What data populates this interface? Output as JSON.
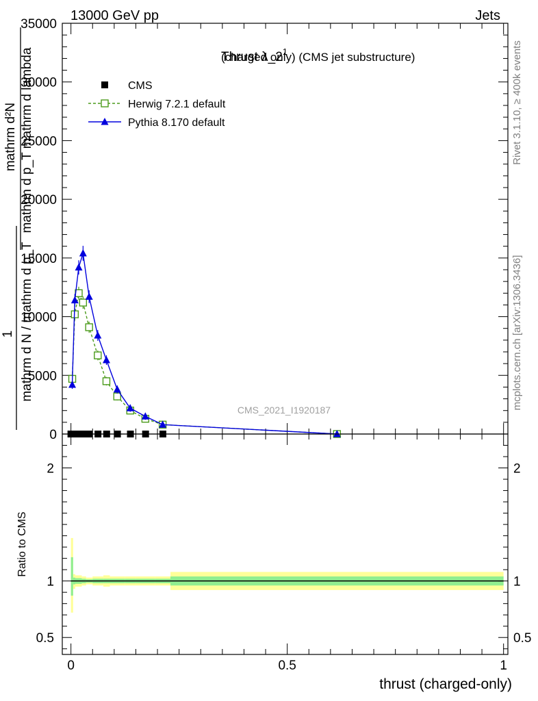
{
  "header": {
    "left": "13000 GeV pp",
    "right": "Jets"
  },
  "side_labels": {
    "rivet": "Rivet 3.1.10, ≥ 400k events",
    "mcplots": "mcplots.cern.ch [arXiv:1306.3436]"
  },
  "watermark": "CMS_2021_I1920187",
  "chart_data": [
    {
      "type": "line",
      "title_main": "Thrust λ_2",
      "title_sup": "1",
      "title_sub": "(charged only) (CMS jet substructure)",
      "ylabel": {
        "numerator": "mathrm d²N",
        "denominator": "mathrm d p_T mathrm d lambda",
        "prefix_one": "1",
        "prefix_den": "mathrm d N / mathrm d p_T"
      },
      "xlim": [
        -0.02,
        1.01
      ],
      "ylim": [
        0,
        35000
      ],
      "yticks": [
        0,
        5000,
        10000,
        15000,
        20000,
        25000,
        30000,
        35000
      ],
      "ytick_labels": [
        "0",
        "5000",
        "10000",
        "15000",
        "20000",
        "25000",
        "30000",
        "35000"
      ],
      "legend_position": "top-left",
      "series": [
        {
          "name": "CMS",
          "color": "#000000",
          "marker": "square-filled",
          "x": [
            0.0,
            0.0075,
            0.0175,
            0.0275,
            0.0425,
            0.0625,
            0.0825,
            0.1075,
            0.1375,
            0.1725,
            0.2125
          ],
          "y": [
            0,
            0,
            0,
            0,
            0,
            0,
            0,
            0,
            0,
            0,
            0
          ]
        },
        {
          "name": "Herwig 7.2.1 default",
          "color": "#4a9a1a",
          "marker": "square-open",
          "line": "dashed",
          "x": [
            0.003,
            0.009,
            0.018,
            0.028,
            0.042,
            0.062,
            0.082,
            0.107,
            0.137,
            0.172,
            0.212,
            0.615
          ],
          "y": [
            4700,
            10200,
            12000,
            11200,
            9100,
            6700,
            4500,
            3200,
            2000,
            1300,
            800,
            0
          ]
        },
        {
          "name": "Pythia 8.170 default",
          "color": "#0000dd",
          "marker": "triangle-filled",
          "line": "solid",
          "x": [
            0.003,
            0.009,
            0.018,
            0.028,
            0.042,
            0.062,
            0.082,
            0.107,
            0.137,
            0.172,
            0.212,
            0.615
          ],
          "y": [
            4200,
            11400,
            14200,
            15400,
            11700,
            8400,
            6300,
            3800,
            2200,
            1500,
            800,
            0
          ]
        }
      ]
    },
    {
      "type": "area",
      "ylabel": "Ratio to CMS",
      "xlabel": "thrust (charged-only)",
      "xlim": [
        -0.02,
        1.01
      ],
      "ylim": [
        0.35,
        2.3
      ],
      "yticks": [
        0.5,
        1,
        2
      ],
      "ytick_labels": [
        "0.5",
        "1",
        "2"
      ],
      "xticks": [
        0,
        0.5,
        1
      ],
      "xtick_labels": [
        "0",
        "0.5",
        "1"
      ],
      "bands": [
        {
          "name": "stat+syst",
          "color": "#ffff99",
          "edges": [
            0.0,
            0.005,
            0.01,
            0.025,
            0.035,
            0.05,
            0.075,
            0.09,
            0.125,
            0.15,
            0.195,
            0.23,
            1.0
          ],
          "low": [
            0.72,
            0.93,
            0.95,
            0.96,
            0.97,
            0.96,
            0.95,
            0.96,
            0.96,
            0.96,
            0.96,
            0.92
          ],
          "high": [
            1.38,
            1.06,
            1.05,
            1.04,
            1.03,
            1.04,
            1.05,
            1.04,
            1.04,
            1.04,
            1.04,
            1.08
          ]
        },
        {
          "name": "stat",
          "color": "#90ee90",
          "edges": [
            0.0,
            0.005,
            0.01,
            0.025,
            0.035,
            0.05,
            0.075,
            0.09,
            0.125,
            0.15,
            0.195,
            0.23,
            1.0
          ],
          "low": [
            0.87,
            0.97,
            0.975,
            0.98,
            0.985,
            0.98,
            0.98,
            0.98,
            0.98,
            0.98,
            0.98,
            0.96
          ],
          "high": [
            1.21,
            1.03,
            1.025,
            1.02,
            1.015,
            1.02,
            1.02,
            1.02,
            1.02,
            1.02,
            1.02,
            1.04
          ]
        }
      ],
      "reference_line": 1
    }
  ]
}
